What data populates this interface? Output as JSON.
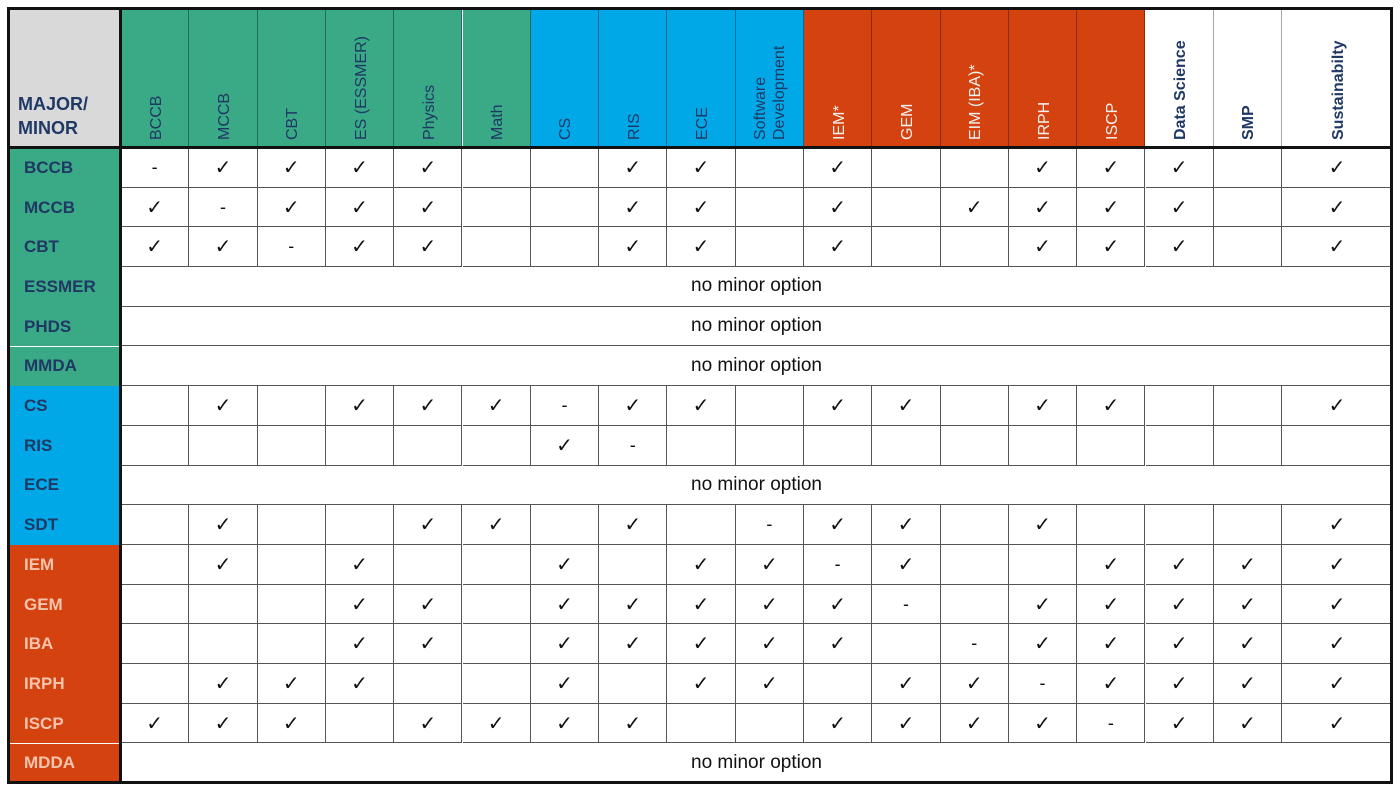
{
  "colors": {
    "green": "#3aa986",
    "blue": "#00a8e8",
    "orange": "#d4420f",
    "white": "#ffffff",
    "gray": "#d9d9d9",
    "navy": "#1f3864"
  },
  "corner_label": [
    "MAJOR/",
    "MINOR"
  ],
  "columns": [
    {
      "label": "BCCB",
      "group": "green"
    },
    {
      "label": "MCCB",
      "group": "green"
    },
    {
      "label": "CBT",
      "group": "green"
    },
    {
      "label": "ES (ESSMER)",
      "group": "green"
    },
    {
      "label": "Physics",
      "group": "green"
    },
    {
      "label": "Math",
      "group": "green"
    },
    {
      "label": "CS",
      "group": "blue"
    },
    {
      "label": "RIS",
      "group": "blue"
    },
    {
      "label": "ECE",
      "group": "blue"
    },
    {
      "label": "Software\nDevelopment",
      "group": "blue"
    },
    {
      "label": "IEM*",
      "group": "orange"
    },
    {
      "label": "GEM",
      "group": "orange"
    },
    {
      "label": "EIM (IBA)*",
      "group": "orange"
    },
    {
      "label": "IRPH",
      "group": "orange"
    },
    {
      "label": "ISCP",
      "group": "orange"
    },
    {
      "label": "Data Science",
      "group": "white"
    },
    {
      "label": "SMP",
      "group": "white"
    },
    {
      "label": "Sustainabilty",
      "group": "white"
    }
  ],
  "no_minor_text": "no minor option",
  "rows": [
    {
      "label": "BCCB",
      "group": "green",
      "cells": [
        "-",
        "✓",
        "✓",
        "✓",
        "✓",
        "",
        "",
        "✓",
        "✓",
        "",
        "✓",
        "",
        "",
        "✓",
        "✓",
        "✓",
        "",
        "✓"
      ]
    },
    {
      "label": "MCCB",
      "group": "green",
      "cells": [
        "✓",
        "-",
        "✓",
        "✓",
        "✓",
        "",
        "",
        "✓",
        "✓",
        "",
        "✓",
        "",
        "✓",
        "✓",
        "✓",
        "✓",
        "",
        "✓"
      ]
    },
    {
      "label": "CBT",
      "group": "green",
      "cells": [
        "✓",
        "✓",
        "-",
        "✓",
        "✓",
        "",
        "",
        "✓",
        "✓",
        "",
        "✓",
        "",
        "",
        "✓",
        "✓",
        "✓",
        "",
        "✓"
      ]
    },
    {
      "label": "ESSMER",
      "group": "green",
      "no_minor": true
    },
    {
      "label": "PHDS",
      "group": "green",
      "no_minor": true
    },
    {
      "label": "MMDA",
      "group": "green",
      "no_minor": true
    },
    {
      "label": "CS",
      "group": "blue",
      "cells": [
        "",
        "✓",
        "",
        "✓",
        "✓",
        "✓",
        "-",
        "✓",
        "✓",
        "",
        "✓",
        "✓",
        "",
        "✓",
        "✓",
        "",
        "",
        "✓"
      ]
    },
    {
      "label": "RIS",
      "group": "blue",
      "cells": [
        "",
        "",
        "",
        "",
        "",
        "",
        "✓",
        "-",
        "",
        "",
        "",
        "",
        "",
        "",
        "",
        "",
        "",
        ""
      ]
    },
    {
      "label": "ECE",
      "group": "blue",
      "no_minor": true
    },
    {
      "label": "SDT",
      "group": "blue",
      "cells": [
        "",
        "✓",
        "",
        "",
        "✓",
        "✓",
        "",
        "✓",
        "",
        "-",
        "✓",
        "✓",
        "",
        "✓",
        "",
        "",
        "",
        "✓"
      ]
    },
    {
      "label": "IEM",
      "group": "orange",
      "cells": [
        "",
        "✓",
        "",
        "✓",
        "",
        "",
        "✓",
        "",
        "✓",
        "✓",
        "-",
        "✓",
        "",
        "",
        "✓",
        "✓",
        "✓",
        "✓"
      ]
    },
    {
      "label": "GEM",
      "group": "orange",
      "cells": [
        "",
        "",
        "",
        "✓",
        "✓",
        "",
        "✓",
        "✓",
        "✓",
        "✓",
        "✓",
        "-",
        "",
        "✓",
        "✓",
        "✓",
        "✓",
        "✓"
      ]
    },
    {
      "label": "IBA",
      "group": "orange",
      "cells": [
        "",
        "",
        "",
        "✓",
        "✓",
        "",
        "✓",
        "✓",
        "✓",
        "✓",
        "✓",
        "",
        "-",
        "✓",
        "✓",
        "✓",
        "✓",
        "✓"
      ]
    },
    {
      "label": "IRPH",
      "group": "orange",
      "cells": [
        "",
        "✓",
        "✓",
        "✓",
        "",
        "",
        "✓",
        "",
        "✓",
        "✓",
        "",
        "✓",
        "✓",
        "-",
        "✓",
        "✓",
        "✓",
        "✓"
      ]
    },
    {
      "label": "ISCP",
      "group": "orange",
      "cells": [
        "✓",
        "✓",
        "✓",
        "",
        "✓",
        "✓",
        "✓",
        "✓",
        "",
        "",
        "✓",
        "✓",
        "✓",
        "✓",
        "-",
        "✓",
        "✓",
        "✓"
      ]
    },
    {
      "label": "MDDA",
      "group": "orange",
      "no_minor": true
    }
  ]
}
